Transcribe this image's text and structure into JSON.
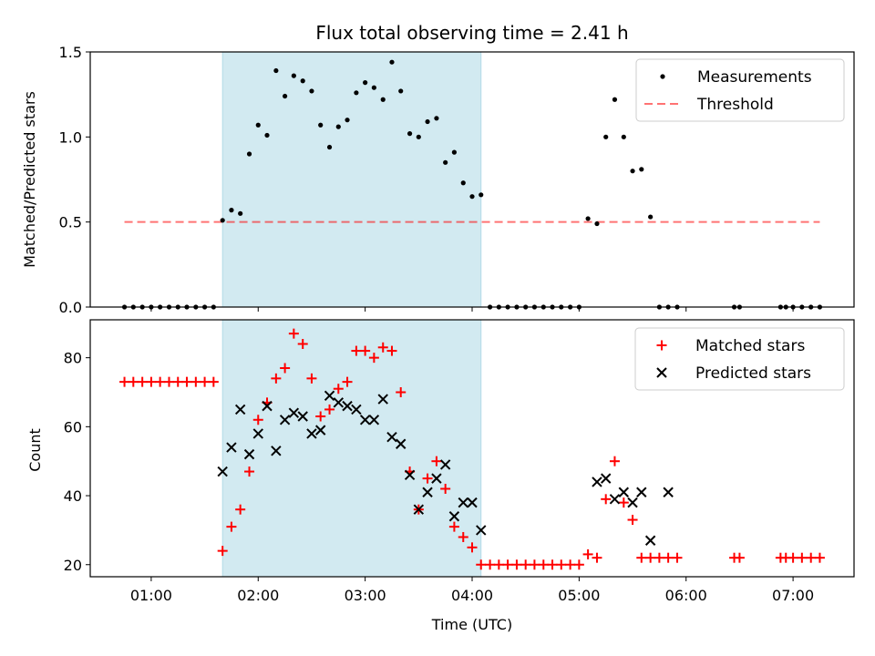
{
  "figure": {
    "title": "Flux total observing time = 2.41 h"
  },
  "chart_data": [
    {
      "type": "scatter",
      "panel": "top",
      "ylabel": "Matched/Predicted stars",
      "xlabel": "",
      "xlim_hours": [
        0.43,
        7.57
      ],
      "ylim": [
        0,
        1.5
      ],
      "yticks": [
        0.0,
        0.5,
        1.0,
        1.5
      ],
      "ytick_labels": [
        "0.0",
        "0.5",
        "1.0",
        "1.5"
      ],
      "shaded_span_hours": [
        1.667,
        4.083
      ],
      "shaded_color": "#add8e6",
      "legend_position": "upper right",
      "legend": [
        "Measurements",
        "Threshold"
      ],
      "threshold": {
        "value": 0.5,
        "x_range_hours": [
          0.75,
          7.25
        ],
        "color": "#ff0000"
      },
      "measurements": {
        "color": "#000000",
        "x": [
          0.75,
          0.833,
          0.917,
          1.0,
          1.083,
          1.167,
          1.25,
          1.333,
          1.417,
          1.5,
          1.583,
          1.667,
          1.75,
          1.833,
          1.917,
          2.0,
          2.083,
          2.167,
          2.25,
          2.333,
          2.417,
          2.5,
          2.583,
          2.667,
          2.75,
          2.833,
          2.917,
          3.0,
          3.083,
          3.167,
          3.25,
          3.333,
          3.417,
          3.5,
          3.583,
          3.667,
          3.75,
          3.833,
          3.917,
          4.0,
          4.083,
          4.167,
          4.25,
          4.333,
          4.417,
          4.5,
          4.583,
          4.667,
          4.75,
          4.833,
          4.917,
          5.0,
          5.083,
          5.167,
          5.25,
          5.333,
          5.417,
          5.5,
          5.583,
          5.667,
          5.75,
          5.833,
          5.917,
          6.45,
          6.5,
          6.883,
          6.933,
          7.0,
          7.083,
          7.167,
          7.25
        ],
        "y": [
          0,
          0,
          0,
          0,
          0,
          0,
          0,
          0,
          0,
          0,
          0,
          0.51,
          0.57,
          0.55,
          0.9,
          1.07,
          1.01,
          1.39,
          1.24,
          1.36,
          1.33,
          1.27,
          1.07,
          0.94,
          1.06,
          1.1,
          1.26,
          1.32,
          1.29,
          1.22,
          1.44,
          1.27,
          1.02,
          1.0,
          1.09,
          1.11,
          0.85,
          0.91,
          0.73,
          0.65,
          0.66,
          0,
          0,
          0,
          0,
          0,
          0,
          0,
          0,
          0,
          0,
          0,
          0.52,
          0.49,
          1.0,
          1.22,
          1.0,
          0.8,
          0.81,
          0.53,
          0,
          0,
          0,
          0,
          0,
          0,
          0,
          0,
          0,
          0,
          0
        ]
      }
    },
    {
      "type": "scatter",
      "panel": "bottom",
      "ylabel": "Count",
      "xlabel": "Time (UTC)",
      "xlim_hours": [
        0.43,
        7.57
      ],
      "ylim": [
        16.5,
        91
      ],
      "yticks": [
        20,
        40,
        60,
        80
      ],
      "ytick_labels": [
        "20",
        "40",
        "60",
        "80"
      ],
      "xticks_hours": [
        1,
        2,
        3,
        4,
        5,
        6,
        7
      ],
      "xtick_labels": [
        "01:00",
        "02:00",
        "03:00",
        "04:00",
        "05:00",
        "06:00",
        "07:00"
      ],
      "shaded_span_hours": [
        1.667,
        4.083
      ],
      "shaded_color": "#add8e6",
      "legend_position": "upper right",
      "legend": [
        "Matched stars",
        "Predicted stars"
      ],
      "series": [
        {
          "name": "Matched stars",
          "marker": "plus",
          "color": "#ff0000",
          "x": [
            0.75,
            0.833,
            0.917,
            1.0,
            1.083,
            1.167,
            1.25,
            1.333,
            1.417,
            1.5,
            1.583,
            1.667,
            1.75,
            1.833,
            1.917,
            2.0,
            2.083,
            2.167,
            2.25,
            2.333,
            2.417,
            2.5,
            2.583,
            2.667,
            2.75,
            2.833,
            2.917,
            3.0,
            3.083,
            3.167,
            3.25,
            3.333,
            3.417,
            3.5,
            3.583,
            3.667,
            3.75,
            3.833,
            3.917,
            4.0,
            4.083,
            4.167,
            4.25,
            4.333,
            4.417,
            4.5,
            4.583,
            4.667,
            4.75,
            4.833,
            4.917,
            5.0,
            5.083,
            5.167,
            5.25,
            5.333,
            5.417,
            5.5,
            5.583,
            5.667,
            5.75,
            5.833,
            5.917,
            6.45,
            6.5,
            6.883,
            6.933,
            7.0,
            7.083,
            7.167,
            7.25
          ],
          "y": [
            73,
            73,
            73,
            73,
            73,
            73,
            73,
            73,
            73,
            73,
            73,
            24,
            31,
            36,
            47,
            62,
            67,
            74,
            77,
            87,
            84,
            74,
            63,
            65,
            71,
            73,
            82,
            82,
            80,
            83,
            82,
            70,
            47,
            36,
            45,
            50,
            42,
            31,
            28,
            25,
            20,
            20,
            20,
            20,
            20,
            20,
            20,
            20,
            20,
            20,
            20,
            20,
            23,
            22,
            39,
            50,
            38,
            33,
            22,
            22,
            22,
            22,
            22,
            22,
            22,
            22,
            22,
            22,
            22,
            22,
            22
          ]
        },
        {
          "name": "Predicted stars",
          "marker": "x",
          "color": "#000000",
          "x": [
            1.667,
            1.75,
            1.833,
            1.917,
            2.0,
            2.083,
            2.167,
            2.25,
            2.333,
            2.417,
            2.5,
            2.583,
            2.667,
            2.75,
            2.833,
            2.917,
            3.0,
            3.083,
            3.167,
            3.25,
            3.333,
            3.417,
            3.5,
            3.583,
            3.667,
            3.75,
            3.833,
            3.917,
            4.0,
            4.083,
            5.167,
            5.25,
            5.333,
            5.417,
            5.5,
            5.583,
            5.667,
            5.833
          ],
          "y": [
            47,
            54,
            65,
            52,
            58,
            66,
            53,
            62,
            64,
            63,
            58,
            59,
            69,
            67,
            66,
            65,
            62,
            62,
            68,
            57,
            55,
            46,
            36,
            41,
            45,
            49,
            34,
            38,
            38,
            30,
            44,
            45,
            39,
            41,
            38,
            41,
            27,
            41
          ]
        }
      ]
    }
  ]
}
